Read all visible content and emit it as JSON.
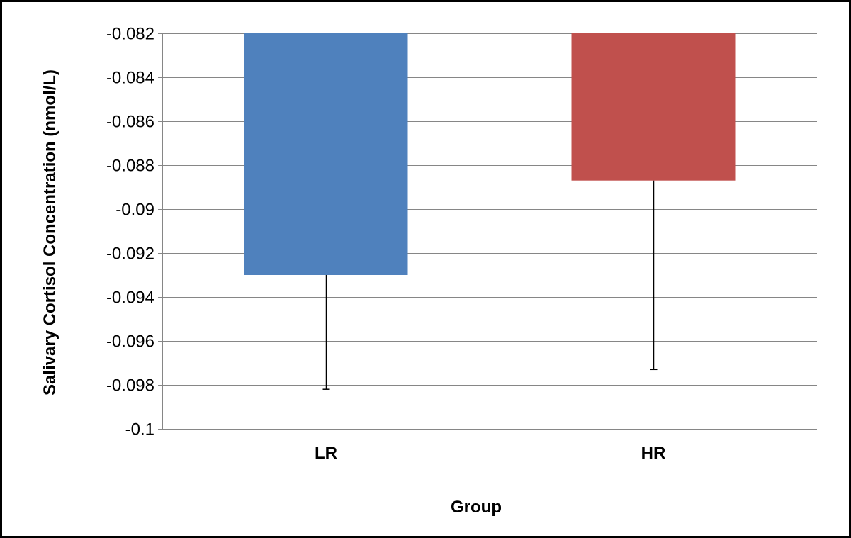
{
  "chart_data": {
    "type": "bar",
    "title": "",
    "xlabel": "Group",
    "ylabel": "Salivary Cortisol Concentration (nmol/L)",
    "categories": [
      "LR",
      "HR"
    ],
    "values": [
      -0.093,
      -0.0887
    ],
    "error_bottom": [
      -0.0982,
      -0.0973
    ],
    "bar_colors": [
      "#4F81BD",
      "#C0504D"
    ],
    "ylim": [
      -0.1,
      -0.082
    ],
    "yticks": [
      "-0.082",
      "-0.084",
      "-0.086",
      "-0.088",
      "-0.09",
      "-0.092",
      "-0.094",
      "-0.096",
      "-0.098",
      "-0.1"
    ],
    "ytick_values": [
      -0.082,
      -0.084,
      -0.086,
      -0.088,
      -0.09,
      -0.092,
      -0.094,
      -0.096,
      -0.098,
      -0.1
    ],
    "grid": true,
    "legend": "none",
    "gridline_color": "#868686",
    "axis_color": "#868686",
    "errorbar_color": "#000000"
  }
}
